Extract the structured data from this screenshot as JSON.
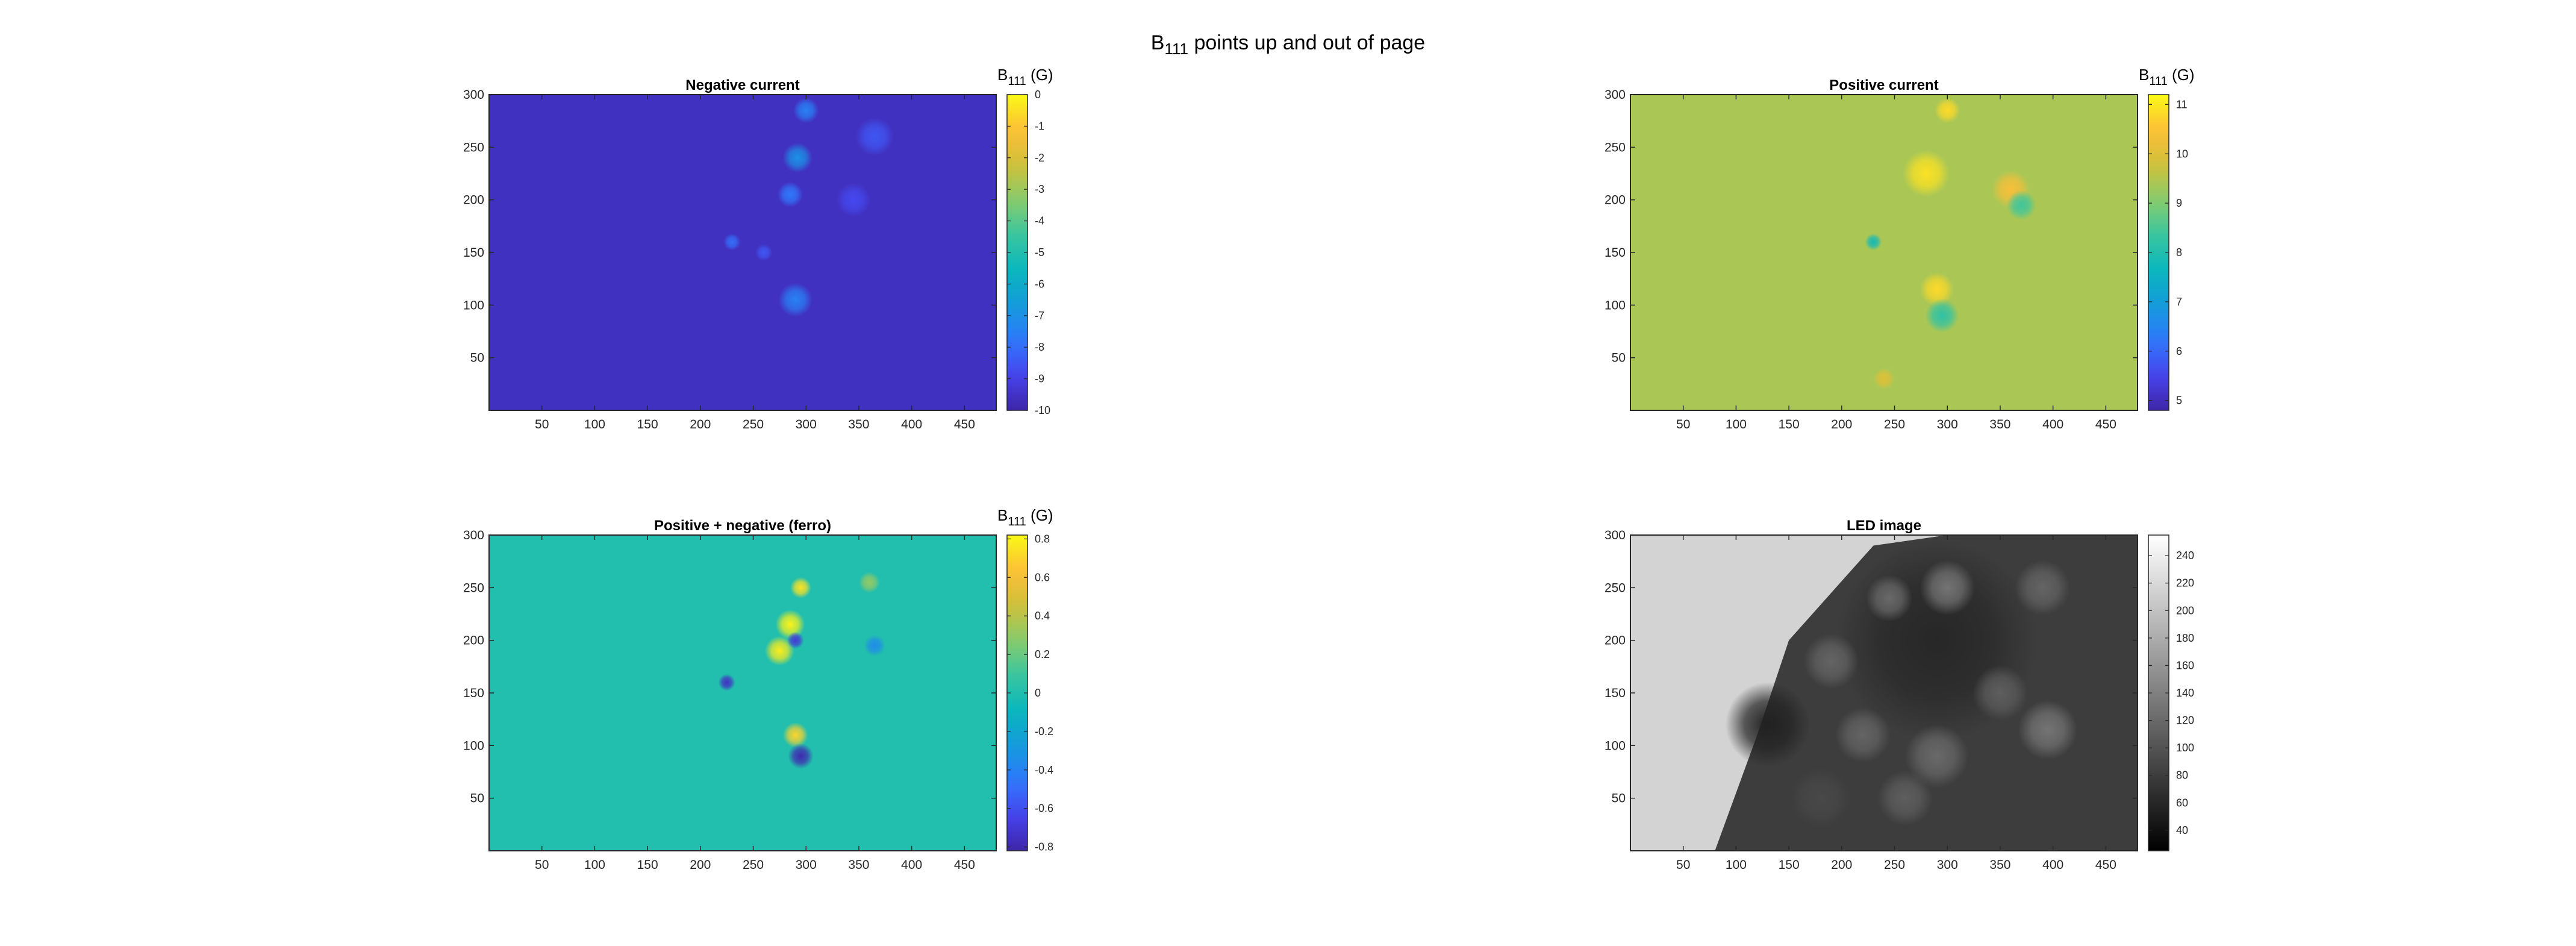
{
  "figure": {
    "suptitle_main": "B",
    "suptitle_sub": "111",
    "suptitle_rest": " points up and out of page"
  },
  "chart_data": [
    {
      "type": "heatmap",
      "title": "Negative current",
      "xlim": [
        0,
        480
      ],
      "ylim": [
        0,
        300
      ],
      "xticks": [
        50,
        100,
        150,
        200,
        250,
        300,
        350,
        400,
        450
      ],
      "yticks": [
        50,
        100,
        150,
        200,
        250,
        300
      ],
      "colormap": "parula",
      "colorbar": {
        "label_main": "B",
        "label_sub": "111",
        "label_unit": " (G)",
        "lim": [
          -10,
          0
        ],
        "ticks": [
          -10,
          -9,
          -8,
          -7,
          -6,
          -5,
          -4,
          -3,
          -2,
          -1,
          0
        ]
      },
      "background_value": -9.6,
      "features": [
        {
          "x": 300,
          "y": 285,
          "value": -7.5,
          "size": 12
        },
        {
          "x": 292,
          "y": 240,
          "value": -7.0,
          "size": 14
        },
        {
          "x": 285,
          "y": 205,
          "value": -7.8,
          "size": 12
        },
        {
          "x": 365,
          "y": 260,
          "value": -8.5,
          "size": 18
        },
        {
          "x": 345,
          "y": 200,
          "value": -8.8,
          "size": 16
        },
        {
          "x": 230,
          "y": 160,
          "value": -8.0,
          "size": 8
        },
        {
          "x": 290,
          "y": 105,
          "value": -7.5,
          "size": 16
        },
        {
          "x": 260,
          "y": 150,
          "value": -8.5,
          "size": 8
        }
      ]
    },
    {
      "type": "heatmap",
      "title": "Positive current",
      "xlim": [
        0,
        480
      ],
      "ylim": [
        0,
        300
      ],
      "xticks": [
        50,
        100,
        150,
        200,
        250,
        300,
        350,
        400,
        450
      ],
      "yticks": [
        50,
        100,
        150,
        200,
        250,
        300
      ],
      "colormap": "parula",
      "colorbar": {
        "label_main": "B",
        "label_sub": "111",
        "label_unit": " (G)",
        "lim": [
          4.8,
          11.2
        ],
        "ticks": [
          5,
          6,
          7,
          8,
          9,
          10,
          11
        ]
      },
      "background_value": 9.4,
      "features": [
        {
          "x": 300,
          "y": 285,
          "value": 10.8,
          "size": 12
        },
        {
          "x": 280,
          "y": 225,
          "value": 10.9,
          "size": 22
        },
        {
          "x": 360,
          "y": 210,
          "value": 10.4,
          "size": 18
        },
        {
          "x": 370,
          "y": 195,
          "value": 8.4,
          "size": 14
        },
        {
          "x": 290,
          "y": 115,
          "value": 10.8,
          "size": 16
        },
        {
          "x": 295,
          "y": 90,
          "value": 8.2,
          "size": 16
        },
        {
          "x": 230,
          "y": 160,
          "value": 7.8,
          "size": 8
        },
        {
          "x": 240,
          "y": 30,
          "value": 10.0,
          "size": 10
        }
      ]
    },
    {
      "type": "heatmap",
      "title": "Positive + negative (ferro)",
      "xlim": [
        0,
        480
      ],
      "ylim": [
        0,
        300
      ],
      "xticks": [
        50,
        100,
        150,
        200,
        250,
        300,
        350,
        400,
        450
      ],
      "yticks": [
        50,
        100,
        150,
        200,
        250,
        300
      ],
      "colormap": "parula",
      "colorbar": {
        "label_main": "B",
        "label_sub": "111",
        "label_unit": " (G)",
        "lim": [
          -0.82,
          0.82
        ],
        "ticks": [
          -0.8,
          -0.6,
          -0.4,
          -0.2,
          0,
          0.2,
          0.4,
          0.6,
          0.8
        ]
      },
      "background_value": 0.0,
      "features": [
        {
          "x": 295,
          "y": 250,
          "value": 0.75,
          "size": 10
        },
        {
          "x": 285,
          "y": 215,
          "value": 0.8,
          "size": 14
        },
        {
          "x": 275,
          "y": 190,
          "value": 0.78,
          "size": 14
        },
        {
          "x": 290,
          "y": 200,
          "value": -0.7,
          "size": 8
        },
        {
          "x": 225,
          "y": 160,
          "value": -0.75,
          "size": 8
        },
        {
          "x": 290,
          "y": 110,
          "value": 0.7,
          "size": 12
        },
        {
          "x": 295,
          "y": 90,
          "value": -0.8,
          "size": 12
        },
        {
          "x": 365,
          "y": 195,
          "value": -0.35,
          "size": 10
        },
        {
          "x": 360,
          "y": 255,
          "value": 0.3,
          "size": 10
        }
      ]
    },
    {
      "type": "heatmap",
      "title": "LED image",
      "xlim": [
        0,
        480
      ],
      "ylim": [
        0,
        300
      ],
      "xticks": [
        50,
        100,
        150,
        200,
        250,
        300,
        350,
        400,
        450
      ],
      "yticks": [
        50,
        100,
        150,
        200,
        250,
        300
      ],
      "colormap": "gray",
      "colorbar": {
        "label_main": "",
        "label_sub": "",
        "label_unit": "",
        "lim": [
          25,
          255
        ],
        "ticks": [
          40,
          60,
          80,
          100,
          120,
          140,
          160,
          180,
          200,
          220,
          240
        ]
      },
      "background_value": 215,
      "features": [
        {
          "x": 130,
          "y": 120,
          "value": 55,
          "size": 40
        },
        {
          "x": 290,
          "y": 200,
          "value": 60,
          "size": 95
        },
        {
          "x": 190,
          "y": 180,
          "value": 115,
          "size": 26
        },
        {
          "x": 245,
          "y": 240,
          "value": 120,
          "size": 22
        },
        {
          "x": 290,
          "y": 90,
          "value": 120,
          "size": 30
        },
        {
          "x": 220,
          "y": 110,
          "value": 115,
          "size": 26
        },
        {
          "x": 350,
          "y": 150,
          "value": 110,
          "size": 26
        },
        {
          "x": 395,
          "y": 115,
          "value": 130,
          "size": 28
        },
        {
          "x": 300,
          "y": 250,
          "value": 130,
          "size": 26
        },
        {
          "x": 390,
          "y": 250,
          "value": 115,
          "size": 26
        },
        {
          "x": 180,
          "y": 50,
          "value": 90,
          "size": 28
        },
        {
          "x": 260,
          "y": 50,
          "value": 110,
          "size": 26
        }
      ]
    }
  ]
}
